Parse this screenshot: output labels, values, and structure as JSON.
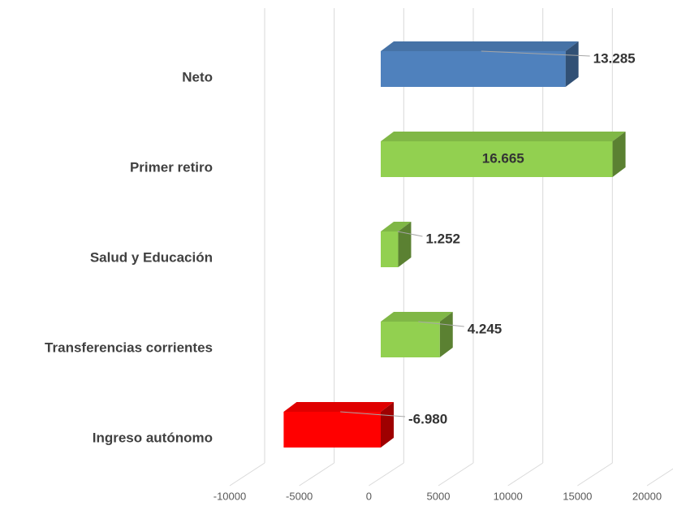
{
  "chart_data": {
    "type": "bar3d_horizontal",
    "categories": [
      "Ingreso autónomo",
      "Transferencias corrientes",
      "Salud y Educación",
      "Primer retiro",
      "Neto"
    ],
    "values": [
      -6980,
      4245,
      1252,
      16665,
      13285
    ],
    "value_labels": [
      "-6.980",
      "4.245",
      "1.252",
      "16.665",
      "13.285"
    ],
    "colors": [
      "#ff0000",
      "#92d050",
      "#92d050",
      "#92d050",
      "#4f81bd"
    ],
    "xlim": [
      -10000,
      20000
    ],
    "xticks": [
      -10000,
      -5000,
      0,
      5000,
      10000,
      15000,
      20000
    ],
    "grid": true
  }
}
